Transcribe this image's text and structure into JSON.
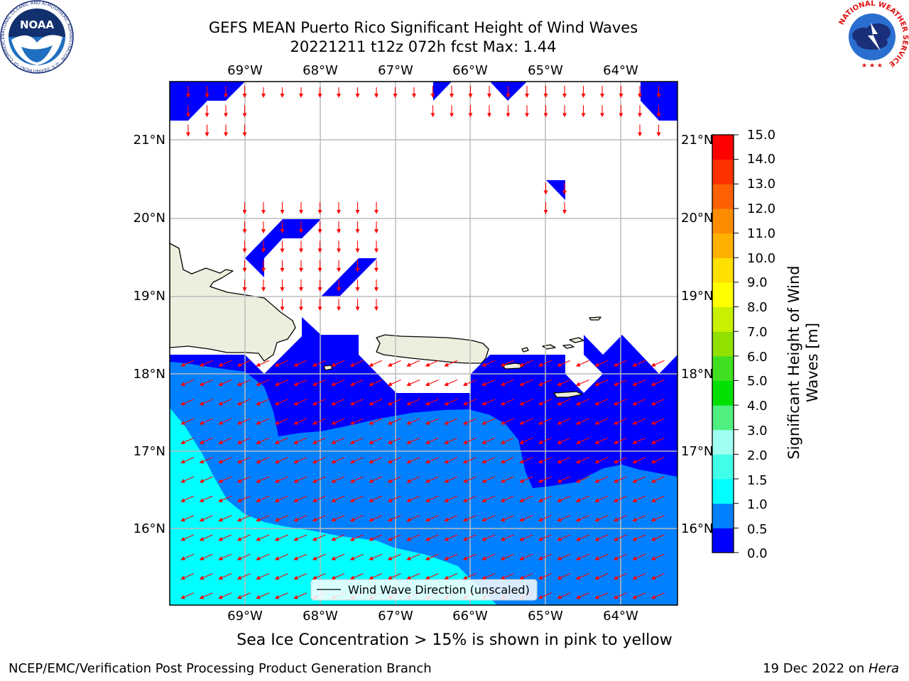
{
  "header": {
    "title_line1": "GEFS MEAN Puerto Rico Significant Height of Wind Waves",
    "title_line2": "20221211 t12z 072h fcst   Max: 1.44"
  },
  "logos": {
    "left": {
      "name": "NOAA",
      "text": "NOAA",
      "ring_text": "NATIONAL OCEANIC AND ATMOSPHERIC ADMINISTRATION · U.S. DEPARTMENT OF COMMERCE"
    },
    "right": {
      "name": "National Weather Service",
      "ring_text": "NATIONAL WEATHER SERVICE"
    }
  },
  "map": {
    "lon_labels": [
      "69°W",
      "68°W",
      "67°W",
      "66°W",
      "65°W",
      "64°W"
    ],
    "lat_labels": [
      "21°N",
      "20°N",
      "19°N",
      "18°N",
      "17°N",
      "16°N"
    ],
    "legend_label": "Wind Wave Direction (unscaled)",
    "colors": {
      "land": "#EEEEDE",
      "band_0": "#0000FF",
      "band_05": "#0080FF",
      "band_1": "#00FFFF",
      "arrow": "#FF0000",
      "grid": "#BBBBBB"
    }
  },
  "colorbar": {
    "title_line1": "Significant Height of Wind",
    "title_line2": "Waves [m]",
    "tick_labels": [
      "0.0",
      "0.5",
      "1.0",
      "1.5",
      "2.0",
      "3.0",
      "4.0",
      "5.0",
      "6.0",
      "7.0",
      "8.0",
      "9.0",
      "10.0",
      "11.0",
      "12.0",
      "13.0",
      "14.0",
      "15.0"
    ],
    "colors": [
      "#0000FF",
      "#0080FF",
      "#00FFFF",
      "#40FFE8",
      "#A0FFF0",
      "#50F080",
      "#00E000",
      "#40E020",
      "#90E000",
      "#C8F000",
      "#FFFF00",
      "#FFE000",
      "#FFB000",
      "#FF8C00",
      "#FF6000",
      "#FF3000",
      "#FF0000"
    ]
  },
  "ice_note": "Sea Ice Concentration > 15% is shown in pink to yellow",
  "footer": {
    "left": "NCEP/EMC/Verification Post Processing Product Generation Branch",
    "right_prefix": "19 Dec 2022 on ",
    "right_italic": "Hera"
  }
}
